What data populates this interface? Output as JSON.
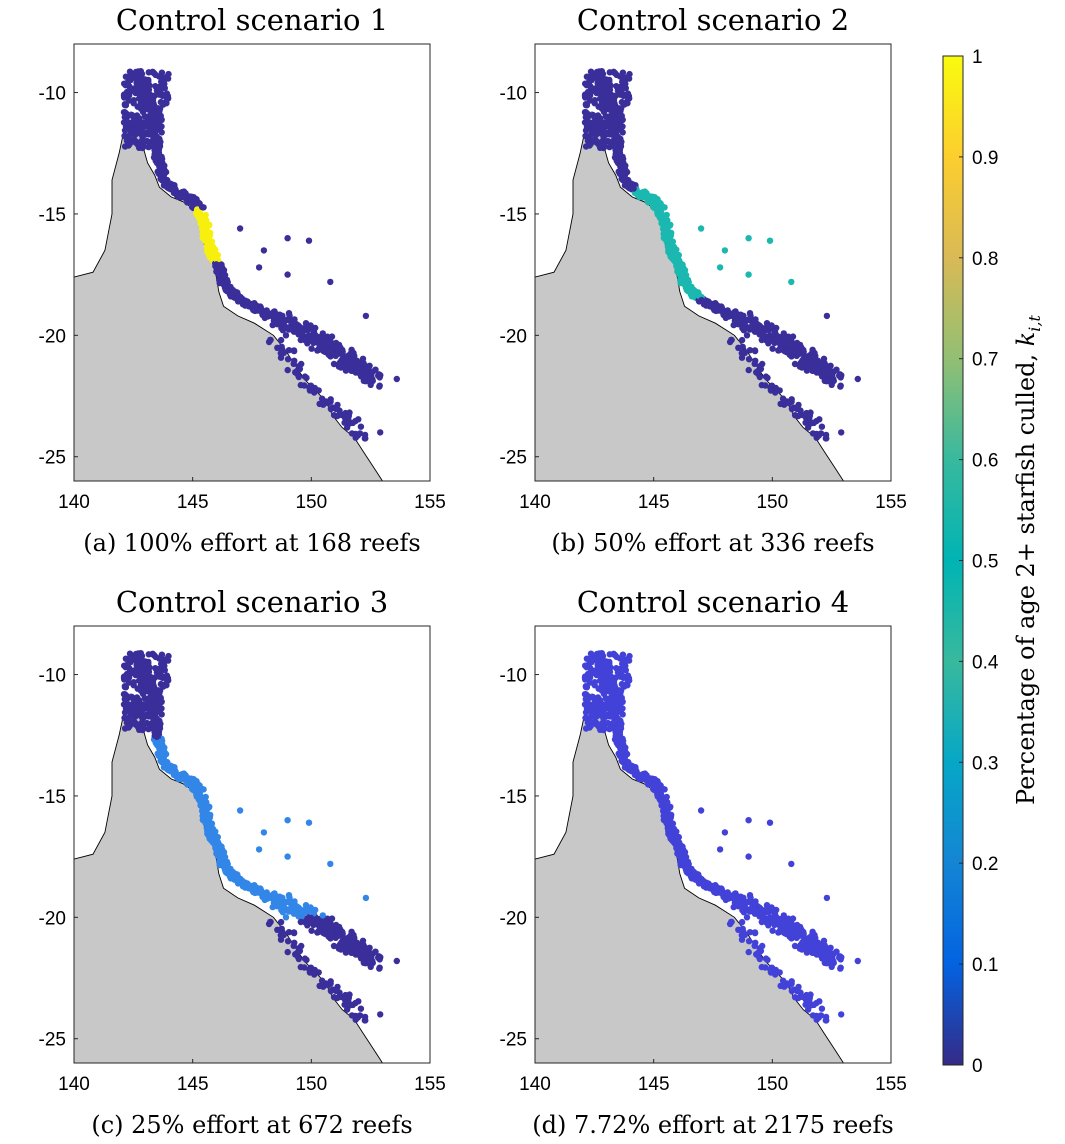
{
  "colorbar": {
    "label": "Percentage of age 2+ starfish culled, ",
    "label_math": "k",
    "label_sub": "i,t",
    "ticks": [
      "0",
      "0.1",
      "0.2",
      "0.3",
      "0.4",
      "0.5",
      "0.6",
      "0.7",
      "0.8",
      "0.9",
      "1"
    ],
    "colormap": "parula",
    "range": [
      0,
      1
    ]
  },
  "chart_data": [
    {
      "type": "scatter",
      "title": "Control scenario 1",
      "caption": "(a) 100% effort at 168 reefs",
      "xlim": [
        140,
        155
      ],
      "ylim": [
        -26,
        -8
      ],
      "xticks": [
        "140",
        "145",
        "150",
        "155"
      ],
      "yticks": [
        "-10",
        "-15",
        "-20",
        "-25"
      ],
      "culled_zone_lat": [
        -14.8,
        -17.0
      ],
      "culled_value": 1.0,
      "other_value": 0.0,
      "reef_count": 168
    },
    {
      "type": "scatter",
      "title": "Control scenario 2",
      "caption": "(b) 50% effort at 336 reefs",
      "xlim": [
        140,
        155
      ],
      "ylim": [
        -26,
        -8
      ],
      "xticks": [
        "140",
        "145",
        "150",
        "155"
      ],
      "yticks": [
        "-10",
        "-15",
        "-20",
        "-25"
      ],
      "culled_zone_lat": [
        -14.0,
        -18.5
      ],
      "culled_value": 0.5,
      "other_value": 0.0,
      "reef_count": 336
    },
    {
      "type": "scatter",
      "title": "Control scenario 3",
      "caption": "(c) 25% effort at 672 reefs",
      "xlim": [
        140,
        155
      ],
      "ylim": [
        -26,
        -8
      ],
      "xticks": [
        "140",
        "145",
        "150",
        "155"
      ],
      "yticks": [
        "-10",
        "-15",
        "-20",
        "-25"
      ],
      "culled_zone_lat": [
        -12.6,
        -20.0
      ],
      "culled_value": 0.25,
      "other_value": 0.0,
      "reef_count": 672
    },
    {
      "type": "scatter",
      "title": "Control scenario 4",
      "caption": "(d) 7.72% effort at 2175 reefs",
      "xlim": [
        140,
        155
      ],
      "ylim": [
        -26,
        -8
      ],
      "xticks": [
        "140",
        "145",
        "150",
        "155"
      ],
      "yticks": [
        "-10",
        "-15",
        "-20",
        "-25"
      ],
      "culled_zone_lat": [
        -8.0,
        -26.0
      ],
      "culled_value": 0.0772,
      "other_value": 0.0,
      "reef_count": 2175
    }
  ]
}
